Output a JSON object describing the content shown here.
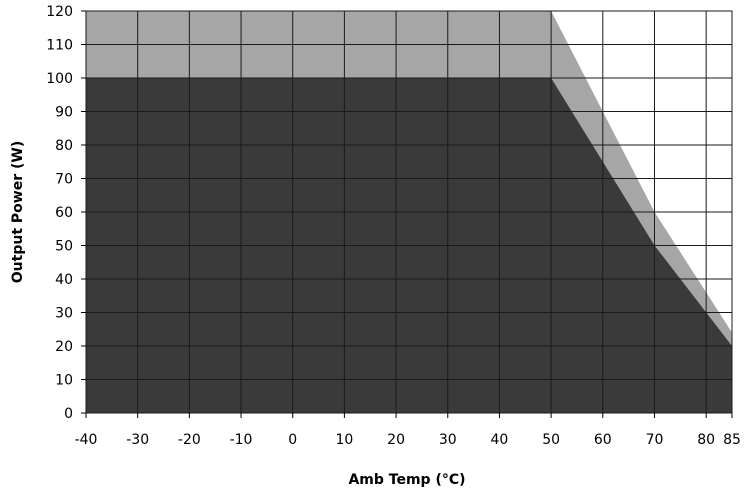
{
  "chart_data": {
    "type": "area",
    "xlabel": "Amb Temp (°C)",
    "ylabel": "Output Power (W)",
    "xlim": [
      -40,
      85
    ],
    "ylim": [
      0,
      120
    ],
    "x_ticks": [
      -40,
      -30,
      -20,
      -10,
      0,
      10,
      20,
      30,
      40,
      50,
      60,
      70,
      80,
      85
    ],
    "y_ticks": [
      0,
      10,
      20,
      30,
      40,
      50,
      60,
      70,
      80,
      90,
      100,
      110,
      120
    ],
    "grid": true,
    "series": [
      {
        "color": "#a6a6a6",
        "points": [
          [
            -40,
            120
          ],
          [
            50,
            120
          ],
          [
            60,
            90
          ],
          [
            70,
            60
          ],
          [
            80,
            36
          ],
          [
            85,
            24
          ]
        ]
      },
      {
        "color": "#3a3a3a",
        "points": [
          [
            -40,
            100
          ],
          [
            50,
            100
          ],
          [
            60,
            75
          ],
          [
            70,
            50
          ],
          [
            80,
            30
          ],
          [
            85,
            20
          ]
        ]
      }
    ]
  }
}
